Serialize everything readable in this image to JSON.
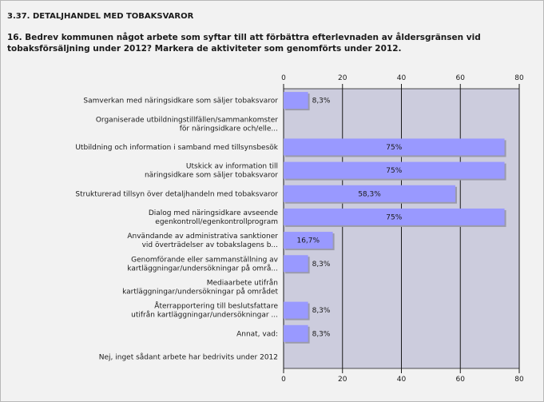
{
  "header": {
    "section_title": "3.37. DETALJHANDEL MED TOBAKSVAROR",
    "question": "16. Bedrev kommunen något arbete som syftar till att förbättra efterlevnaden av åldersgränsen vid tobaksförsäljning under 2012? Markera de aktiviteter som genomförts under 2012."
  },
  "chart_data": {
    "type": "bar",
    "orientation": "horizontal",
    "title": "",
    "xlabel": "",
    "ylabel": "",
    "xlim": [
      0,
      80
    ],
    "ticks": [
      "0",
      "20",
      "40",
      "60",
      "80"
    ],
    "tick_values": [
      0,
      20,
      40,
      60,
      80
    ],
    "grid": true,
    "bar_color": "#9999ff",
    "plot_bg": "#ccccdd",
    "categories": [
      [
        "Samverkan med näringsidkare som säljer tobaksvaror"
      ],
      [
        "Organiserade utbildningstillfällen/sammankomster",
        "för näringsidkare och/elle..."
      ],
      [
        "Utbildning och information i samband med tillsynsbesök"
      ],
      [
        "Utskick av information till",
        "näringsidkare som säljer tobaksvaror"
      ],
      [
        "Strukturerad tillsyn över detaljhandeln med tobaksvaror"
      ],
      [
        "Dialog med näringsidkare avseende",
        "egenkontroll/egenkontrollprogram"
      ],
      [
        "Användande av administrativa sanktioner",
        "vid överträdelser av tobakslagens b..."
      ],
      [
        "Genomförande eller sammanställning av",
        "kartläggningar/undersökningar på områ..."
      ],
      [
        "Mediaarbete utifrån",
        "kartläggningar/undersökningar på området"
      ],
      [
        "Återrapportering till beslutsfattare",
        "utifrån kartläggningar/undersökningar ..."
      ],
      [
        "Annat, vad:"
      ],
      [
        "Nej, inget sådant arbete har bedrivits under 2012"
      ]
    ],
    "values": [
      8.3,
      0,
      75,
      75,
      58.3,
      75,
      16.7,
      8.3,
      0,
      8.3,
      8.3,
      0
    ],
    "value_labels": [
      "8,3%",
      "",
      "75%",
      "75%",
      "58,3%",
      "75%",
      "16,7%",
      "8,3%",
      "",
      "8,3%",
      "8,3%",
      ""
    ]
  }
}
